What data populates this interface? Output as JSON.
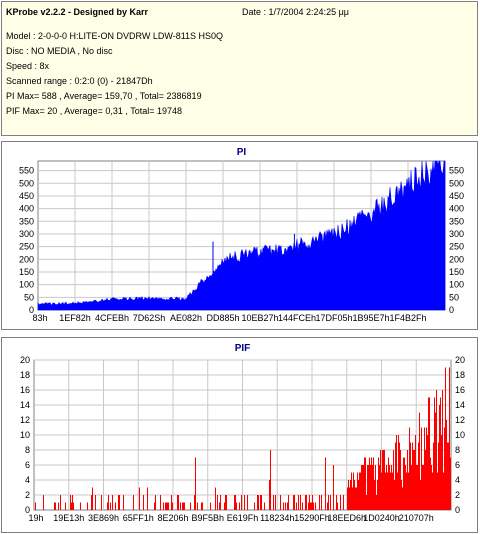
{
  "info": {
    "title": "KProbe v2.2.2 - Designed by Karr",
    "date": "Date : 1/7/2004 2:24:25 μμ",
    "lines": [
      "Model : 2-0-0-0 H:LITE-ON DVDRW LDW-811S   HS0Q",
      "Disc : NO MEDIA , No disc",
      "Speed : 8x",
      "Scanned range : 0:2:0 (0) - 21847Dh",
      "PI Max= 588 , Average= 159,70 , Total= 2386819",
      "PIF Max= 20 , Average= 0,31 , Total= 19748"
    ]
  },
  "colors": {
    "pi_series": "#0000ff",
    "pif_series": "#ff0000",
    "title": "#000080",
    "grid": "#c8c8c8"
  },
  "chart_data": [
    {
      "type": "area",
      "title": "PI",
      "ylim": [
        0,
        588
      ],
      "yticks": [
        0,
        50,
        100,
        150,
        200,
        250,
        300,
        350,
        400,
        450,
        500,
        550
      ],
      "xlabels": [
        "83h",
        "1EF82h",
        "4CFEBh",
        "7D62Sh",
        "AE082h",
        "DD885h",
        "10EB27h",
        "144FCEh",
        "17DF05h",
        "1B95E7h",
        "1F4B2Fh"
      ],
      "grid": true,
      "series": [
        {
          "x": [
            "83h",
            "1EF82h",
            "4CFEBh",
            "7D62Sh",
            "AE082h",
            "DD885h",
            "10EB27h",
            "144FCEh",
            "17DF05h",
            "1B95E7h",
            "1F4B2Fh",
            "21847Dh"
          ],
          "values": [
            22,
            24,
            40,
            42,
            40,
            190,
            215,
            240,
            280,
            360,
            470,
            575
          ]
        }
      ]
    },
    {
      "type": "bar",
      "title": "PIF",
      "ylim": [
        0,
        20
      ],
      "yticks": [
        0,
        2,
        4,
        6,
        8,
        10,
        12,
        14,
        16,
        18,
        20
      ],
      "xlabels": [
        "19h",
        "19E13h",
        "3E869h",
        "65FF1h",
        "8E206h",
        "B9F5Bh",
        "E619Fh",
        "118234h",
        "15290Fh",
        "18EED6h",
        "1D0240h",
        "210707h"
      ],
      "grid": true,
      "series": [
        {
          "x": [
            "19h",
            "19E13h",
            "3E869h",
            "65FF1h",
            "8E206h",
            "B9F5Bh",
            "E619Fh",
            "118234h",
            "15290Fh",
            "18EED6h",
            "1D0240h",
            "210707h"
          ],
          "values": [
            3,
            2,
            2,
            2,
            2,
            2,
            3,
            6,
            5,
            8,
            12,
            20
          ]
        }
      ]
    }
  ]
}
